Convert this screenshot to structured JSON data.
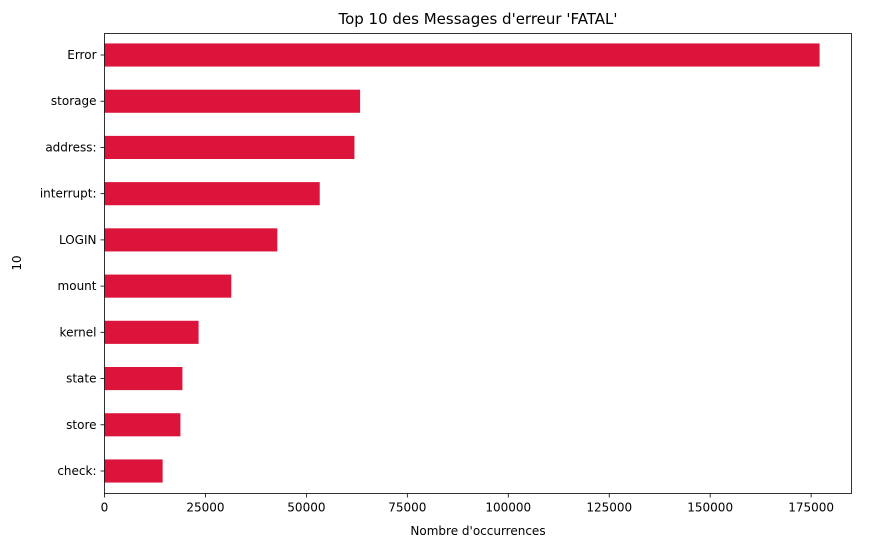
{
  "chart_data": {
    "type": "bar",
    "orientation": "horizontal",
    "title": "Top 10 des Messages d'erreur 'FATAL'",
    "xlabel": "Nombre d'occurrences",
    "ylabel": "10",
    "categories": [
      "Error",
      "storage",
      "address:",
      "interrupt:",
      "LOGIN",
      "mount",
      "kernel",
      "state",
      "store",
      "check:"
    ],
    "values": [
      177100,
      63300,
      61900,
      53300,
      42800,
      31400,
      23300,
      19300,
      18800,
      14400
    ],
    "xlim": [
      0,
      185000
    ],
    "xticks": [
      0,
      25000,
      50000,
      75000,
      100000,
      125000,
      150000,
      175000
    ],
    "xtick_labels": [
      "0",
      "25000",
      "50000",
      "75000",
      "100000",
      "125000",
      "150000",
      "175000"
    ],
    "bar_color": "#dc143c",
    "grid": false,
    "legend": "none"
  }
}
